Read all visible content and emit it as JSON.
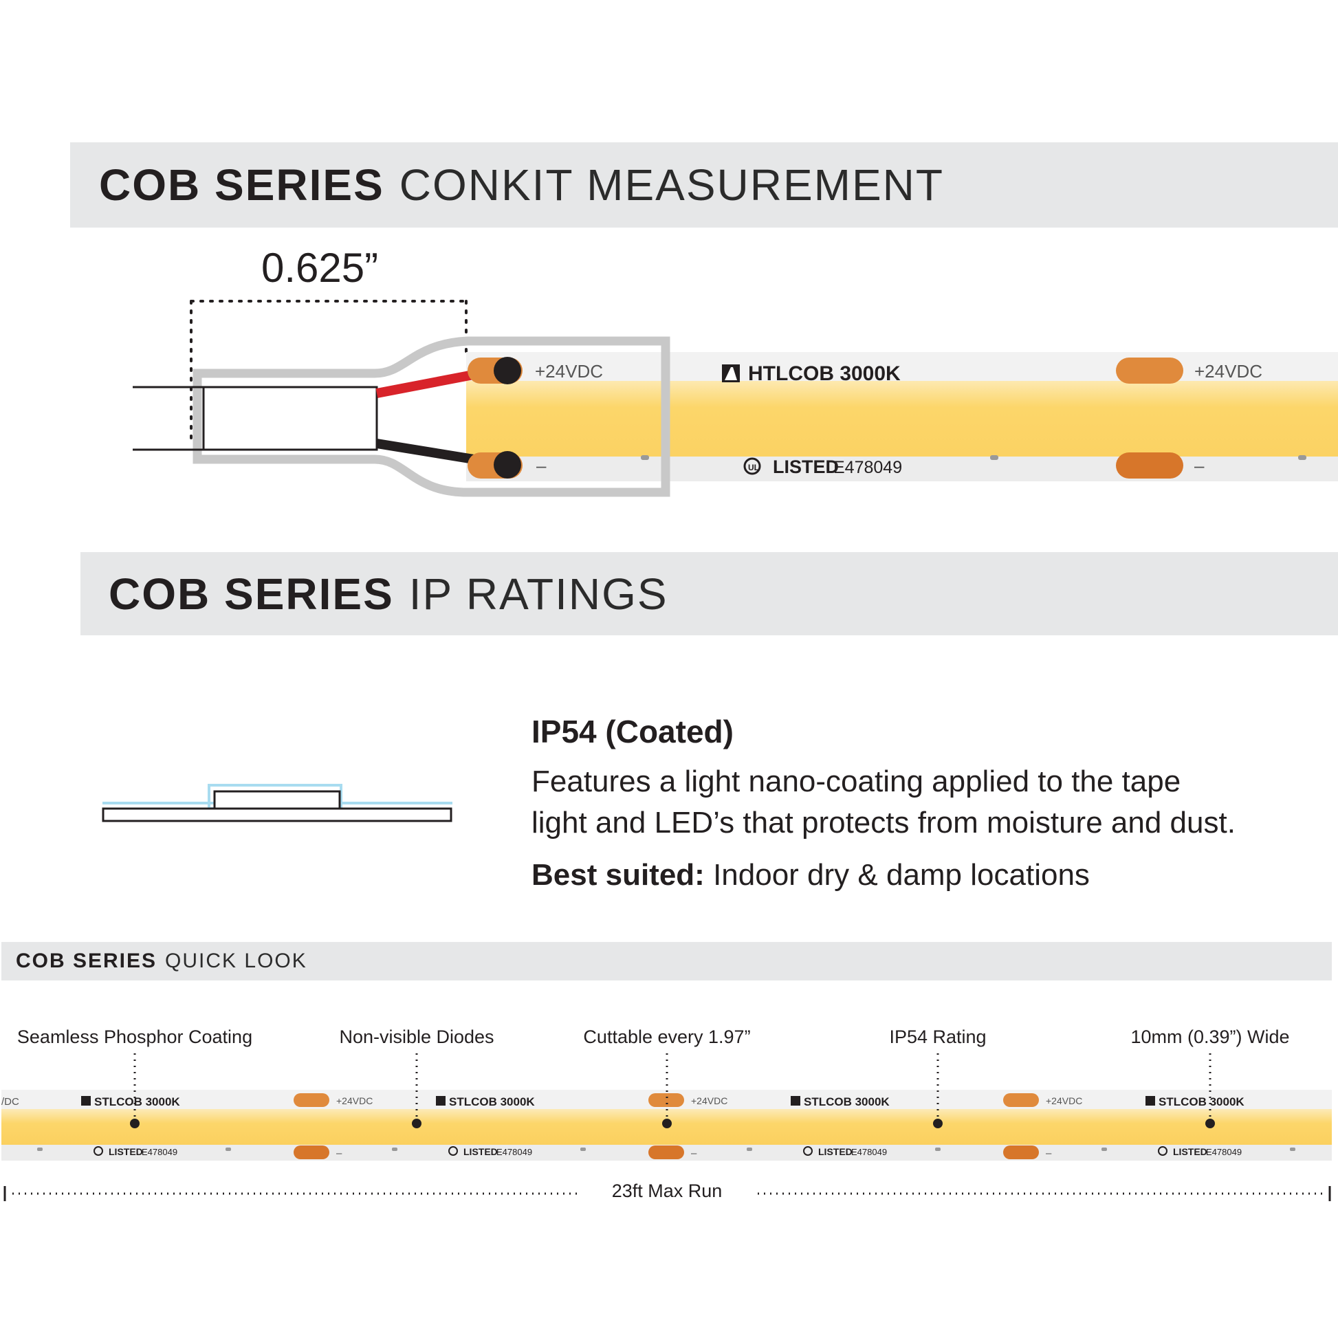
{
  "sections": {
    "conkit": {
      "bold": "COB SERIES",
      "light": "CONKIT MEASUREMENT"
    },
    "ip": {
      "bold": "COB SERIES",
      "light": "IP RATINGS"
    },
    "quick": {
      "bold": "COB SERIES",
      "light": "QUICK LOOK"
    }
  },
  "conkit": {
    "dimension": "0.625”",
    "plus_label": "+24VDC",
    "minus_label": "–",
    "product_label": "HTLCOB 3000K",
    "listing_label": "LISTED",
    "listing_number": "E478049"
  },
  "ip_rating": {
    "title": "IP54 (Coated)",
    "description_line1": "Features a light nano-coating applied to the tape",
    "description_line2": "light and LED’s that protects from moisture and dust.",
    "best_label": "Best suited:",
    "best_value": "Indoor dry & damp locations"
  },
  "quick_look": {
    "callouts": [
      "Seamless Phosphor Coating",
      "Non-visible Diodes",
      "Cuttable every 1.97”",
      "IP54 Rating",
      "10mm (0.39”) Wide"
    ],
    "strip_product": "STLCOB 3000K",
    "strip_plus": "+24VDC",
    "strip_plus_partial": "/DC",
    "strip_minus": "–",
    "strip_listing": "LISTED",
    "strip_listing_number": "E478049",
    "max_run": "23ft Max Run"
  },
  "colors": {
    "band_gray": "#e6e7e8",
    "led_yellow": "#fcd66a",
    "pad_orange": "#e08a3c",
    "wire_red": "#d8232a",
    "wire_black": "#231f20",
    "coating_blue": "#a8dcf0"
  }
}
